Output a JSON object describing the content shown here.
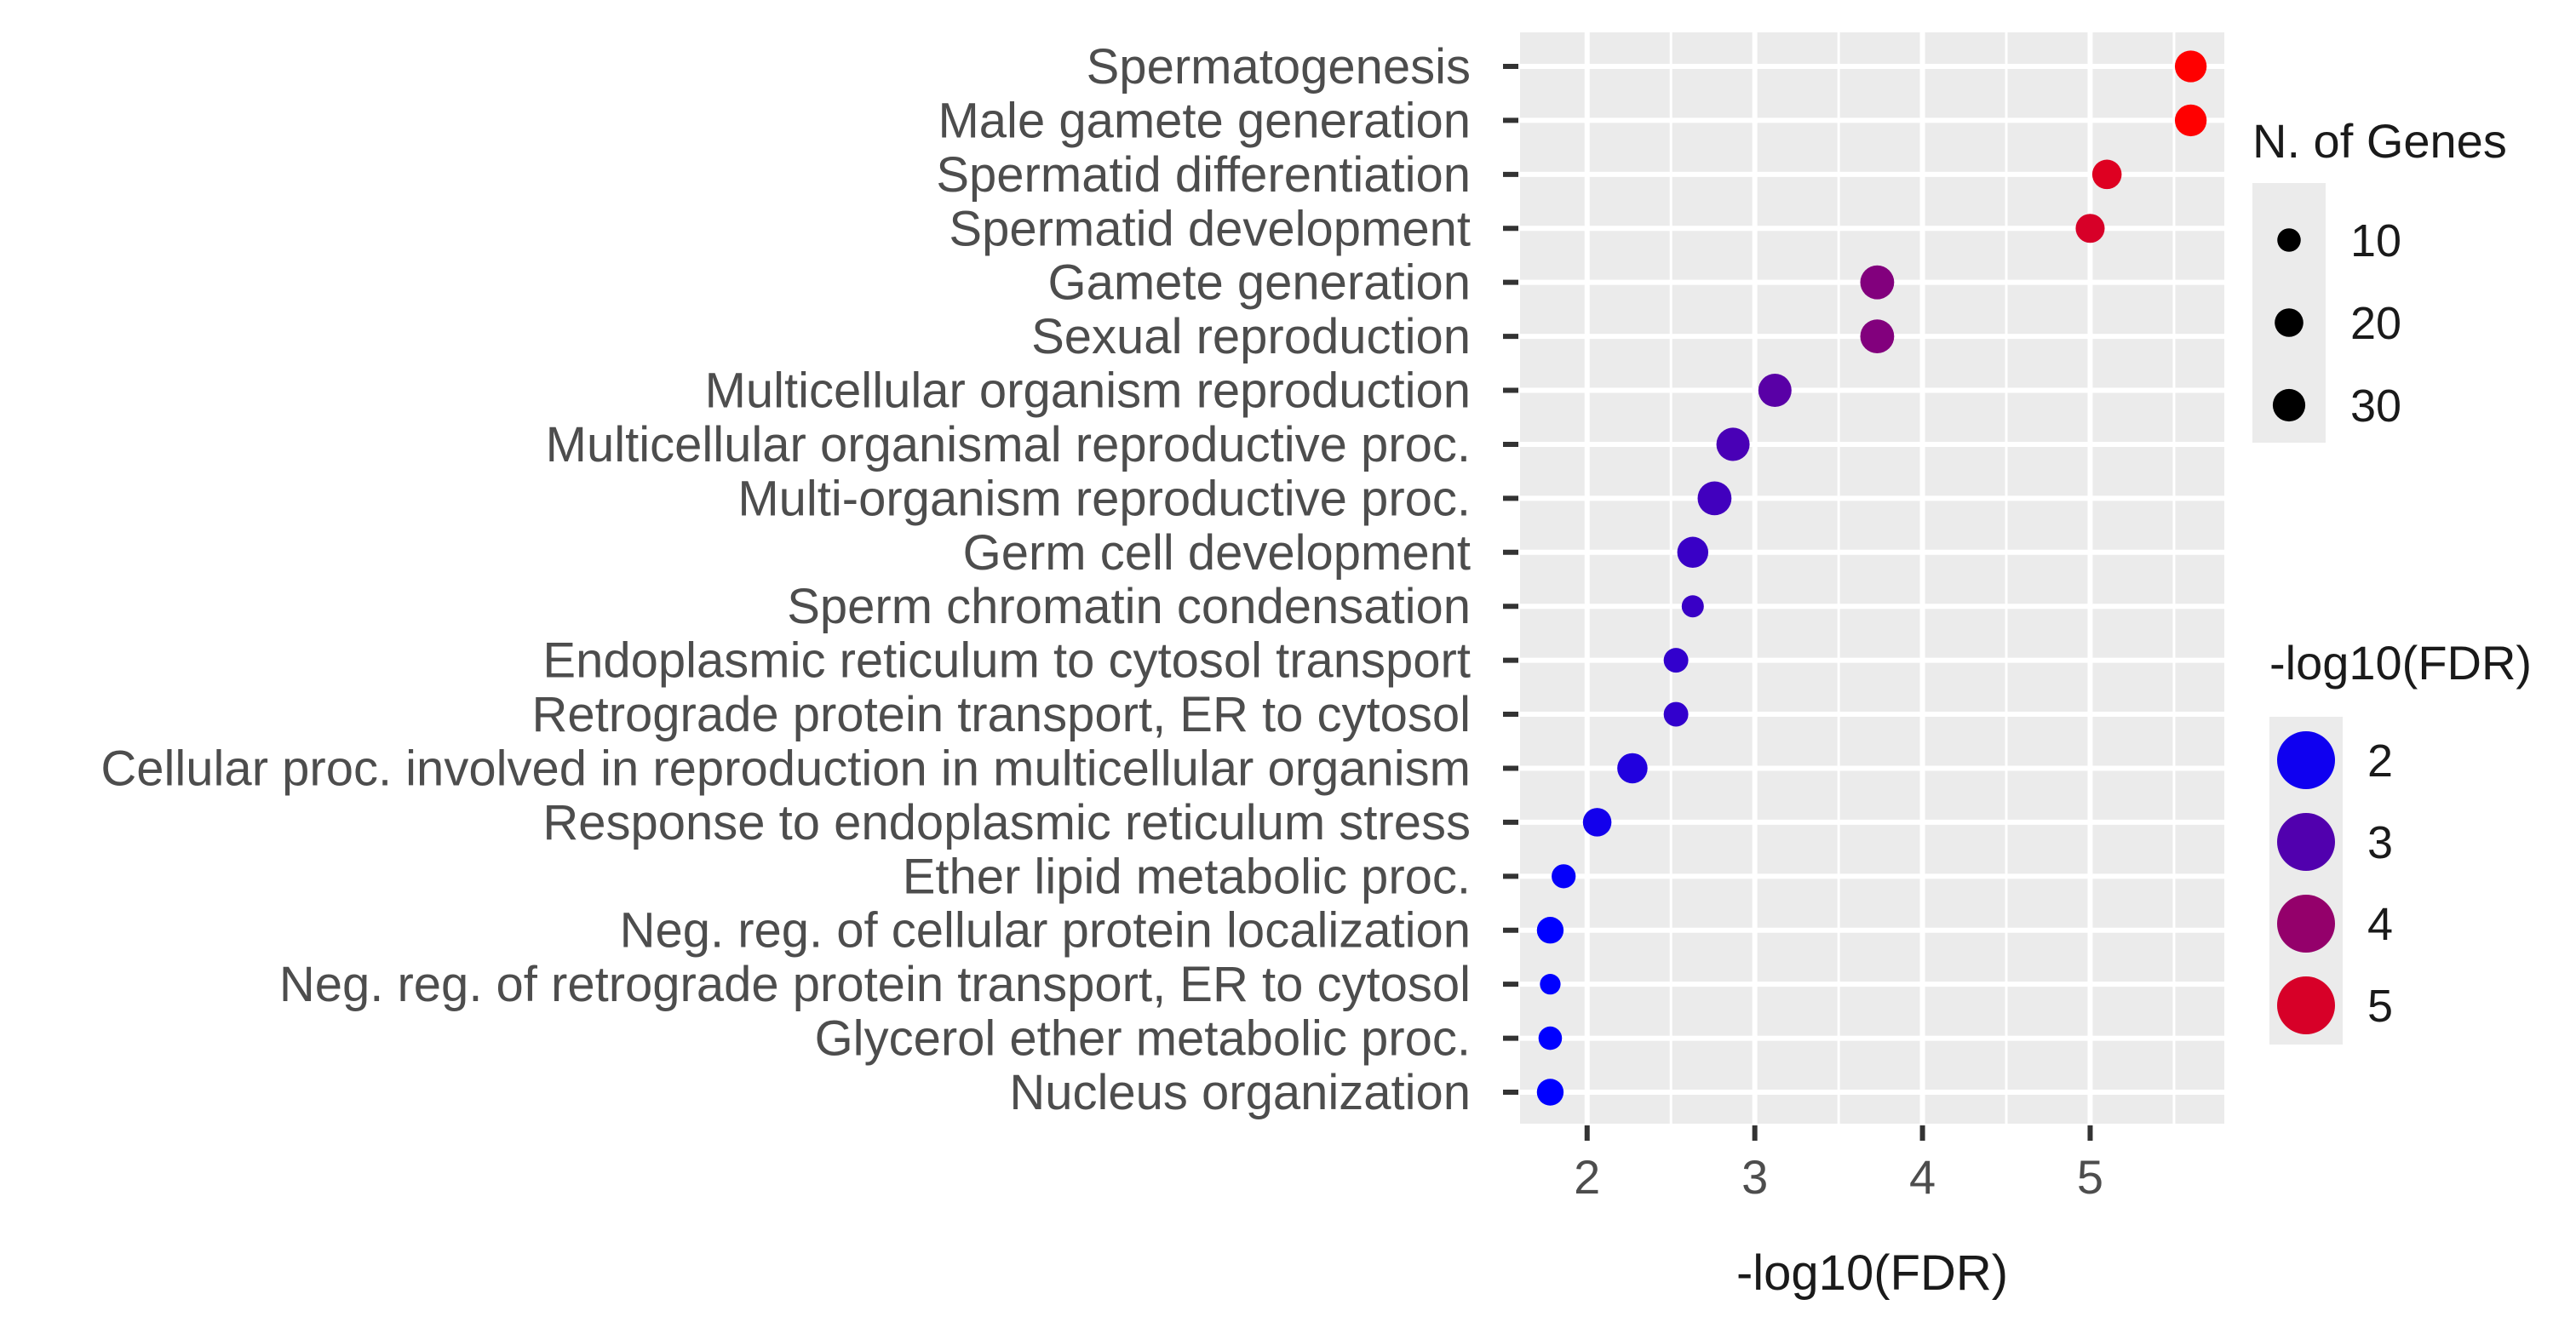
{
  "chart_data": {
    "type": "scatter",
    "xlabel": "-log10(FDR)",
    "ylabel": "",
    "xlim": [
      1.6,
      5.8
    ],
    "x_ticks": [
      2,
      3,
      4,
      5
    ],
    "grid": true,
    "categories": [
      "Spermatogenesis",
      "Male gamete generation",
      "Spermatid differentiation",
      "Spermatid development",
      "Gamete generation",
      "Sexual reproduction",
      "Multicellular organism reproduction",
      "Multicellular organismal reproductive proc.",
      "Multi-organism reproductive proc.",
      "Germ cell development",
      "Sperm chromatin condensation",
      "Endoplasmic reticulum to cytosol transport",
      "Retrograde protein transport, ER to cytosol",
      "Cellular proc. involved in reproduction in multicellular organism",
      "Response to endoplasmic reticulum stress",
      "Ether lipid metabolic proc.",
      "Neg. reg. of cellular protein localization",
      "Neg. reg. of retrograde protein transport, ER to cytosol",
      "Glycerol ether metabolic proc.",
      "Nucleus organization"
    ],
    "x": [
      5.6,
      5.6,
      5.1,
      5.0,
      3.73,
      3.73,
      3.12,
      2.87,
      2.76,
      2.63,
      2.63,
      2.53,
      2.53,
      2.27,
      2.06,
      1.86,
      1.78,
      1.78,
      1.78,
      1.78
    ],
    "n_genes": [
      28,
      28,
      22,
      21,
      34,
      34,
      32,
      32,
      34,
      26,
      8,
      12,
      12,
      24,
      20,
      11,
      16,
      6,
      10,
      16
    ],
    "size_legend": {
      "title": "N. of Genes",
      "entries": [
        {
          "value": 10,
          "label": "10"
        },
        {
          "value": 20,
          "label": "20"
        },
        {
          "value": 30,
          "label": "30"
        }
      ]
    },
    "color_legend": {
      "title": "-log10(FDR)",
      "entries": [
        {
          "value": 2,
          "label": "2"
        },
        {
          "value": 3,
          "label": "3"
        },
        {
          "value": 4,
          "label": "4"
        },
        {
          "value": 5,
          "label": "5"
        }
      ]
    },
    "colors": {
      "panel_background": "#ebebeb",
      "grid": "#ffffff",
      "low": "#0000ff",
      "high": "#ff0000"
    }
  }
}
